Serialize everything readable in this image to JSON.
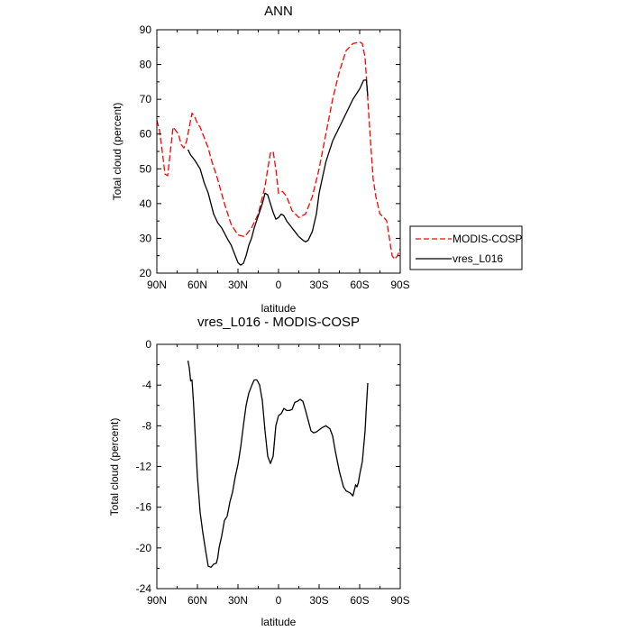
{
  "chart_data": [
    {
      "type": "line",
      "title": "ANN",
      "xlabel": "latitude",
      "ylabel": "Total cloud (percent)",
      "xlim": [
        90,
        -90
      ],
      "ylim": [
        20,
        90
      ],
      "xticks": [
        90,
        60,
        30,
        0,
        -30,
        -60,
        -90
      ],
      "xtick_labels": [
        "90N",
        "60N",
        "30N",
        "0",
        "30S",
        "60S",
        "90S"
      ],
      "yticks": [
        20,
        30,
        40,
        50,
        60,
        70,
        80,
        90
      ],
      "ytick_labels": [
        "20",
        "30",
        "40",
        "50",
        "60",
        "70",
        "80",
        "90"
      ],
      "legend": "outside-right",
      "series": [
        {
          "name": "MODIS-COSP",
          "color": "#ff0000",
          "dash": "dashed",
          "x": [
            90,
            88,
            86,
            84,
            82,
            80,
            78,
            76,
            74,
            72,
            70,
            68,
            66,
            64,
            62,
            60,
            58,
            55,
            52,
            50,
            45,
            40,
            35,
            30,
            25,
            20,
            15,
            10,
            8,
            6,
            4,
            2,
            0,
            -3,
            -6,
            -8,
            -10,
            -15,
            -20,
            -25,
            -30,
            -35,
            -40,
            -45,
            -50,
            -55,
            -60,
            -62,
            -64,
            -66,
            -68,
            -70,
            -72,
            -75,
            -78,
            -80,
            -82,
            -84,
            -86,
            -88,
            -90
          ],
          "values": [
            64,
            61,
            55,
            48.5,
            48,
            55,
            62,
            61,
            60,
            57,
            56,
            58,
            62,
            66,
            65,
            63,
            62,
            59,
            56,
            53,
            47,
            40,
            34,
            31,
            30.5,
            33,
            37,
            45,
            50,
            54.5,
            55,
            50,
            43,
            43.5,
            42,
            40,
            38,
            36,
            37,
            42,
            50,
            60,
            70,
            78,
            84,
            86,
            86.5,
            86,
            82,
            70,
            58,
            47,
            42,
            37,
            36,
            35,
            30,
            25,
            24,
            25,
            27
          ]
        },
        {
          "name": "vres_L016",
          "color": "#000000",
          "dash": "solid",
          "x": [
            67,
            65,
            62,
            58,
            55,
            52,
            50,
            48,
            45,
            42,
            40,
            38,
            35,
            32,
            30,
            28,
            26,
            24,
            22,
            20,
            18,
            15,
            12,
            10,
            8,
            6,
            4,
            2,
            0,
            -2,
            -4,
            -6,
            -8,
            -10,
            -12,
            -15,
            -18,
            -20,
            -22,
            -25,
            -28,
            -30,
            -35,
            -40,
            -45,
            -50,
            -55,
            -60,
            -63,
            -65,
            -66
          ],
          "values": [
            55.5,
            54,
            52.5,
            50,
            46,
            43,
            40,
            37,
            34.5,
            33,
            31.5,
            30,
            28,
            25,
            23,
            22.3,
            22.8,
            25,
            28,
            30,
            33,
            36.5,
            40,
            43,
            42.5,
            40,
            37.5,
            35.5,
            36,
            37,
            36.5,
            35,
            34,
            33,
            32,
            30.5,
            29.5,
            29,
            29.5,
            32,
            37,
            43,
            52,
            58,
            62,
            66,
            70,
            73,
            75.5,
            75.5,
            71
          ]
        }
      ]
    },
    {
      "type": "line",
      "title": "vres_L016 - MODIS-COSP",
      "xlabel": "latitude",
      "ylabel": "Total cloud (percent)",
      "xlim": [
        90,
        -90
      ],
      "ylim": [
        -24,
        0
      ],
      "xticks": [
        90,
        60,
        30,
        0,
        -30,
        -60,
        -90
      ],
      "xtick_labels": [
        "90N",
        "60N",
        "30N",
        "0",
        "30S",
        "60S",
        "90S"
      ],
      "yticks": [
        0,
        -4,
        -8,
        -12,
        -16,
        -20,
        -24
      ],
      "ytick_labels": [
        "0",
        "-4",
        "-8",
        "-12",
        "-16",
        "-20",
        "-24"
      ],
      "series": [
        {
          "color": "#000000",
          "dash": "solid",
          "x": [
            67,
            66,
            65,
            64,
            63,
            62,
            61,
            60,
            58,
            56,
            54,
            52,
            50,
            48,
            46,
            45,
            44,
            42,
            40,
            38,
            36,
            34,
            32,
            30,
            28,
            26,
            24,
            22,
            20,
            18,
            16,
            14,
            12,
            10,
            8,
            6,
            4,
            2,
            0,
            -2,
            -4,
            -6,
            -8,
            -10,
            -12,
            -14,
            -16,
            -18,
            -20,
            -22,
            -24,
            -26,
            -28,
            -30,
            -32,
            -35,
            -38,
            -40,
            -42,
            -45,
            -48,
            -50,
            -53,
            -55,
            -57,
            -58,
            -59,
            -60,
            -62,
            -64,
            -65,
            -66
          ],
          "values": [
            -1.6,
            -2.3,
            -3.6,
            -3.5,
            -5.5,
            -8,
            -10.5,
            -13,
            -16.5,
            -18.5,
            -20.2,
            -21.8,
            -21.9,
            -21.6,
            -21.5,
            -21,
            -20,
            -18.8,
            -17.3,
            -16.9,
            -15.5,
            -14.5,
            -13,
            -11.8,
            -10.1,
            -8,
            -6,
            -4.8,
            -4.1,
            -3.5,
            -3.5,
            -4,
            -5.5,
            -8.5,
            -11,
            -11.7,
            -11,
            -8,
            -7,
            -6.8,
            -6.3,
            -6.5,
            -6.5,
            -6.4,
            -5.7,
            -5.6,
            -5.4,
            -5.6,
            -6.5,
            -7.5,
            -8.5,
            -8.7,
            -8.6,
            -8.4,
            -8.2,
            -8,
            -8.3,
            -9,
            -10.5,
            -12.5,
            -14,
            -14.4,
            -14.6,
            -14.9,
            -13.8,
            -14,
            -13.6,
            -12.8,
            -11.5,
            -8.5,
            -6,
            -3.8
          ]
        }
      ]
    }
  ]
}
